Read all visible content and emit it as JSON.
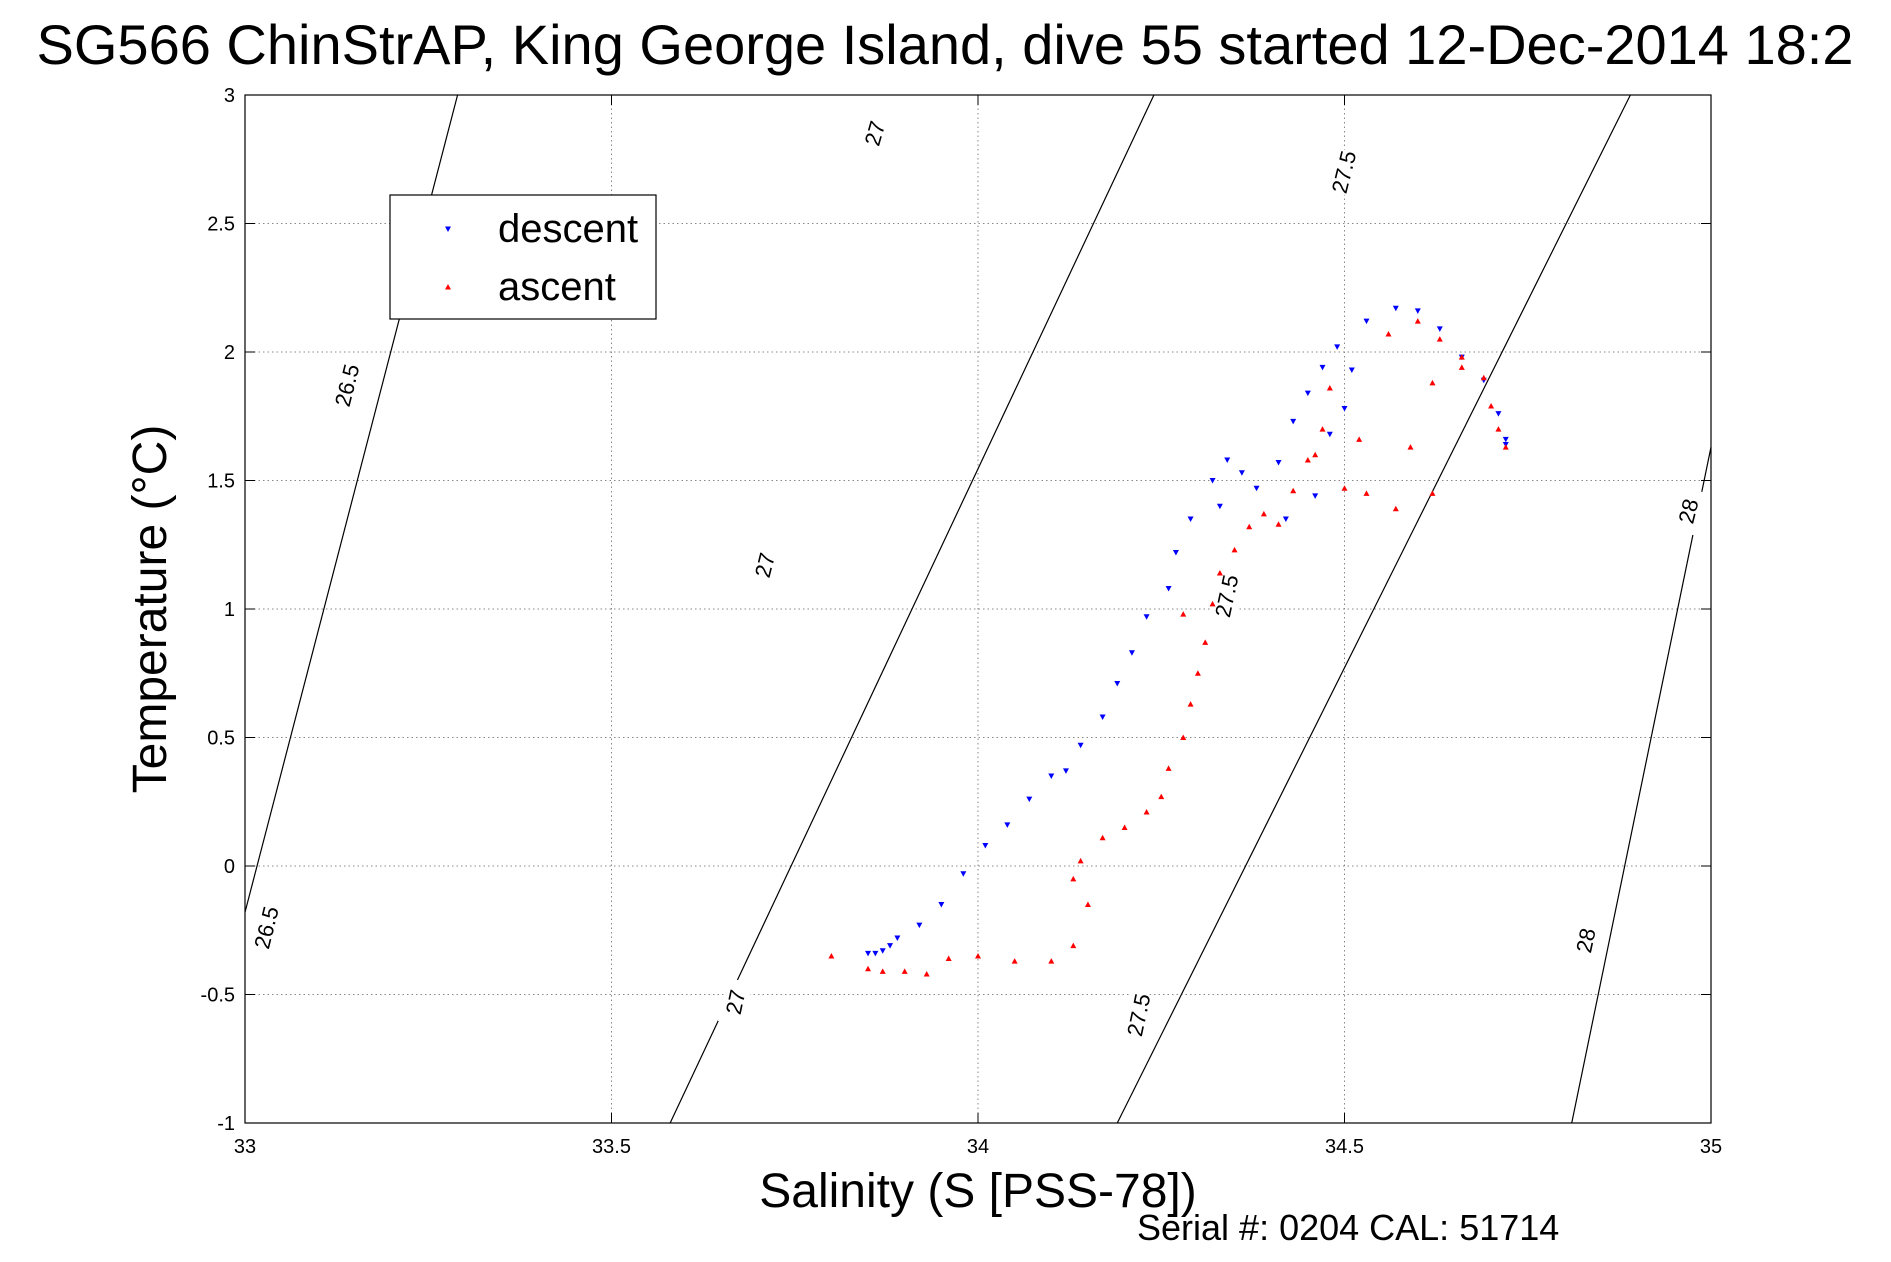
{
  "chart_data": {
    "type": "scatter",
    "title": "SG566 ChinStrAP, King George Island, dive 55 started 12-Dec-2014 18:2",
    "xlabel": "Salinity (S [PSS-78])",
    "ylabel": "Temperature (°C)",
    "xlim": [
      33,
      35
    ],
    "ylim": [
      -1,
      3
    ],
    "x_ticks": [
      "33",
      "33.5",
      "34",
      "34.5",
      "35"
    ],
    "y_ticks": [
      "-1",
      "-0.5",
      "0",
      "0.5",
      "1",
      "1.5",
      "2",
      "2.5",
      "3"
    ],
    "grid": true,
    "legend_position": "top-left",
    "footer": "Serial #: 0204  CAL: 51714",
    "contour_labels": [
      "26.5",
      "26.5",
      "27",
      "27",
      "27",
      "27.5",
      "27.5",
      "27.5",
      "28",
      "28"
    ],
    "series": [
      {
        "name": "descent",
        "color": "#0000ff",
        "marker": "triangle-down",
        "points": [
          [
            33.85,
            -0.34
          ],
          [
            33.86,
            -0.34
          ],
          [
            33.87,
            -0.33
          ],
          [
            33.88,
            -0.31
          ],
          [
            33.89,
            -0.28
          ],
          [
            33.92,
            -0.23
          ],
          [
            33.95,
            -0.15
          ],
          [
            33.98,
            -0.03
          ],
          [
            34.01,
            0.08
          ],
          [
            34.04,
            0.16
          ],
          [
            34.07,
            0.26
          ],
          [
            34.1,
            0.35
          ],
          [
            34.12,
            0.37
          ],
          [
            34.14,
            0.47
          ],
          [
            34.17,
            0.58
          ],
          [
            34.19,
            0.71
          ],
          [
            34.21,
            0.83
          ],
          [
            34.23,
            0.97
          ],
          [
            34.26,
            1.08
          ],
          [
            34.27,
            1.22
          ],
          [
            34.29,
            1.35
          ],
          [
            34.32,
            1.5
          ],
          [
            34.34,
            1.58
          ],
          [
            34.36,
            1.53
          ],
          [
            34.38,
            1.47
          ],
          [
            34.41,
            1.57
          ],
          [
            34.43,
            1.73
          ],
          [
            34.45,
            1.84
          ],
          [
            34.47,
            1.94
          ],
          [
            34.49,
            2.02
          ],
          [
            34.51,
            1.93
          ],
          [
            34.5,
            1.78
          ],
          [
            34.53,
            2.12
          ],
          [
            34.57,
            2.17
          ],
          [
            34.6,
            2.16
          ],
          [
            34.63,
            2.09
          ],
          [
            34.66,
            1.98
          ],
          [
            34.69,
            1.89
          ],
          [
            34.71,
            1.76
          ],
          [
            34.72,
            1.66
          ],
          [
            34.72,
            1.64
          ],
          [
            34.33,
            1.4
          ],
          [
            34.42,
            1.35
          ],
          [
            34.46,
            1.44
          ],
          [
            34.48,
            1.68
          ]
        ]
      },
      {
        "name": "ascent",
        "color": "#ff0000",
        "marker": "triangle-up",
        "points": [
          [
            33.8,
            -0.35
          ],
          [
            33.85,
            -0.4
          ],
          [
            33.87,
            -0.41
          ],
          [
            33.9,
            -0.41
          ],
          [
            33.93,
            -0.42
          ],
          [
            33.96,
            -0.36
          ],
          [
            34.0,
            -0.35
          ],
          [
            34.05,
            -0.37
          ],
          [
            34.1,
            -0.37
          ],
          [
            34.13,
            -0.31
          ],
          [
            34.15,
            -0.15
          ],
          [
            34.13,
            -0.05
          ],
          [
            34.14,
            0.02
          ],
          [
            34.17,
            0.11
          ],
          [
            34.2,
            0.15
          ],
          [
            34.23,
            0.21
          ],
          [
            34.25,
            0.27
          ],
          [
            34.26,
            0.38
          ],
          [
            34.28,
            0.5
          ],
          [
            34.29,
            0.63
          ],
          [
            34.3,
            0.75
          ],
          [
            34.31,
            0.87
          ],
          [
            34.28,
            0.98
          ],
          [
            34.32,
            1.02
          ],
          [
            34.33,
            1.14
          ],
          [
            34.35,
            1.23
          ],
          [
            34.37,
            1.32
          ],
          [
            34.39,
            1.37
          ],
          [
            34.41,
            1.33
          ],
          [
            34.43,
            1.46
          ],
          [
            34.45,
            1.58
          ],
          [
            34.47,
            1.7
          ],
          [
            34.48,
            1.86
          ],
          [
            34.5,
            1.47
          ],
          [
            34.53,
            1.45
          ],
          [
            34.57,
            1.39
          ],
          [
            34.62,
            1.45
          ],
          [
            34.56,
            2.07
          ],
          [
            34.6,
            2.12
          ],
          [
            34.63,
            2.05
          ],
          [
            34.66,
            1.98
          ],
          [
            34.69,
            1.9
          ],
          [
            34.7,
            1.79
          ],
          [
            34.71,
            1.7
          ],
          [
            34.72,
            1.63
          ],
          [
            34.59,
            1.63
          ],
          [
            34.62,
            1.88
          ],
          [
            34.66,
            1.94
          ],
          [
            34.46,
            1.6
          ],
          [
            34.52,
            1.66
          ]
        ]
      }
    ]
  }
}
